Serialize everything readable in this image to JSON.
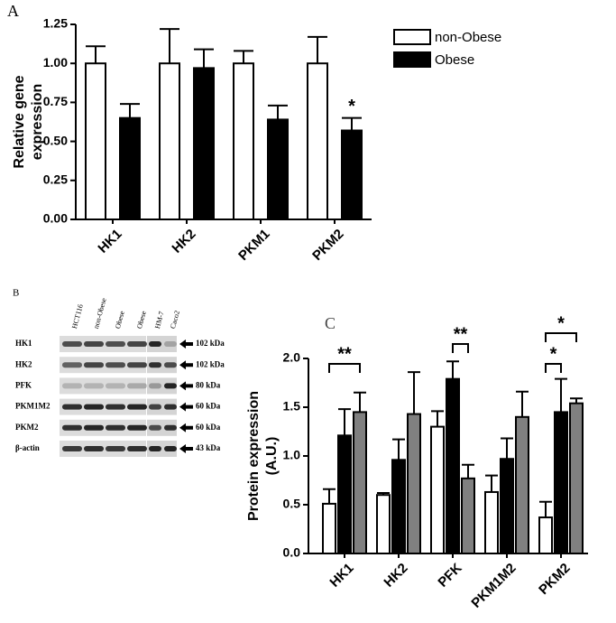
{
  "chart_data": [
    {
      "type": "bar",
      "panel_label": "A",
      "ylabel": [
        "Relative gene",
        "expression"
      ],
      "categories": [
        "HK1",
        "HK2",
        "PKM1",
        "PKM2"
      ],
      "series": [
        {
          "name": "non-Obese",
          "color": "#ffffff",
          "values": [
            1,
            1,
            1,
            1
          ],
          "errors": [
            0.11,
            0.22,
            0.08,
            0.17
          ]
        },
        {
          "name": "Obese",
          "color": "#000000",
          "values": [
            0.65,
            0.97,
            0.64,
            0.57
          ],
          "errors": [
            0.09,
            0.12,
            0.09,
            0.08
          ]
        }
      ],
      "ylim": [
        0,
        1.25
      ],
      "yticks": [
        {
          "value": 0,
          "label": "0.00"
        },
        0.25,
        {
          "value": 0.5,
          "label": "0.50"
        },
        0.75,
        {
          "value": 1,
          "label": "1.00"
        },
        1.25
      ],
      "legend": "top-right",
      "annotations": [
        {
          "text": "*",
          "category": "PKM2",
          "series": [
            1
          ]
        }
      ]
    },
    {
      "type": "bar",
      "panel_label": "C",
      "ylabel": [
        "Protein expression",
        "(A.U.)"
      ],
      "categories": [
        "HK1",
        "HK2",
        "PFK",
        "PKM1M2",
        "PKM2"
      ],
      "series": [
        {
          "color": "#ffffff",
          "values": [
            0.51,
            0.6,
            1.3,
            0.63,
            0.37
          ],
          "errors": [
            0.15,
            0.02,
            0.16,
            0.17,
            0.16
          ]
        },
        {
          "color": "#000000",
          "values": [
            1.21,
            0.96,
            1.79,
            0.97,
            1.45
          ],
          "errors": [
            0.27,
            0.21,
            0.18,
            0.21,
            0.34
          ]
        },
        {
          "color": "#808080",
          "values": [
            1.45,
            1.43,
            0.77,
            1.4,
            1.54
          ],
          "errors": [
            0.2,
            0.43,
            0.14,
            0.26,
            0.05
          ]
        }
      ],
      "ylim": [
        0,
        2
      ],
      "yticks": [
        {
          "value": 0,
          "label": "0.0"
        },
        0.5,
        {
          "value": 1,
          "label": "1.0"
        },
        1.5,
        {
          "value": 2,
          "label": "2.0"
        }
      ],
      "annotations": [
        {
          "text": "**",
          "category": "HK1",
          "series": [
            0,
            2
          ]
        },
        {
          "text": "**",
          "category": "PFK",
          "series": [
            1,
            2
          ]
        },
        {
          "text": "*",
          "category": "PKM2",
          "series": [
            0,
            1
          ]
        },
        {
          "text": "*",
          "category": "PKM2",
          "series": [
            0,
            2
          ]
        }
      ]
    }
  ],
  "blot": {
    "label": "B",
    "lanes": [
      "HCT116",
      "non-Obese",
      "Obese",
      "Obese",
      "HM-7",
      "Caco2"
    ],
    "rows": [
      {
        "protein": "HK1",
        "size": "102 kDa"
      },
      {
        "protein": "HK2",
        "size": "102 kDa"
      },
      {
        "protein": "PFK",
        "size": "80 kDa"
      },
      {
        "protein": "PKM1M2",
        "size": "60 kDa"
      },
      {
        "protein": "PKM2",
        "size": "60 kDa"
      },
      {
        "protein": "β-actin",
        "size": "43 kDa"
      }
    ]
  }
}
